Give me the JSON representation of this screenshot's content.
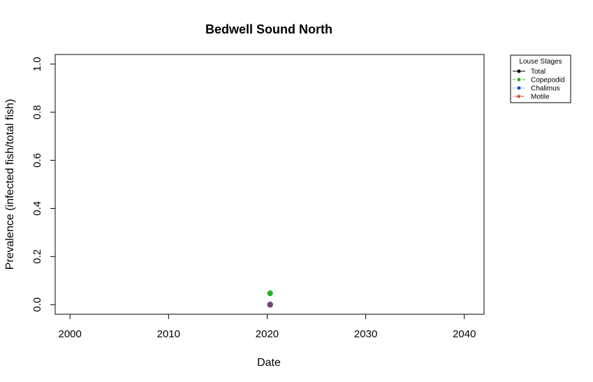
{
  "chart_data": {
    "type": "line",
    "title": "Bedwell Sound North",
    "xlabel": "Date",
    "ylabel": "Prevalence (infected fish/total fish)",
    "xlim": [
      1998.5,
      2042
    ],
    "ylim": [
      -0.04,
      1.04
    ],
    "x_ticks": [
      2000,
      2010,
      2020,
      2030,
      2040
    ],
    "y_ticks": [
      0.0,
      0.2,
      0.4,
      0.6,
      0.8,
      1.0
    ],
    "x_tick_labels": [
      "2000",
      "2010",
      "2020",
      "2030",
      "2040"
    ],
    "y_tick_labels": [
      "0.0",
      "0.2",
      "0.4",
      "0.6",
      "0.8",
      "1.0"
    ],
    "grid": false,
    "legend": {
      "title": "Louse Stages",
      "placement": "top-right outside"
    },
    "series": [
      {
        "name": "Total",
        "color": "#000000",
        "line": "solid",
        "marker": "filled-circle",
        "x": [
          2020.3
        ],
        "y": [
          0.0
        ]
      },
      {
        "name": "Copepodid",
        "color": "#22b022",
        "line": "dashed",
        "marker": "filled-circle",
        "x": [
          2020.3
        ],
        "y": [
          0.047
        ]
      },
      {
        "name": "Chalimus",
        "color": "#1f4fd6",
        "line": "dotted",
        "marker": "filled-circle",
        "x": [
          2020.3
        ],
        "y": [
          0.0
        ]
      },
      {
        "name": "Motile",
        "color": "#c0392b",
        "line": "dotdash",
        "marker": "open-star",
        "x": [
          2020.3
        ],
        "y": [
          0.0
        ]
      }
    ]
  }
}
